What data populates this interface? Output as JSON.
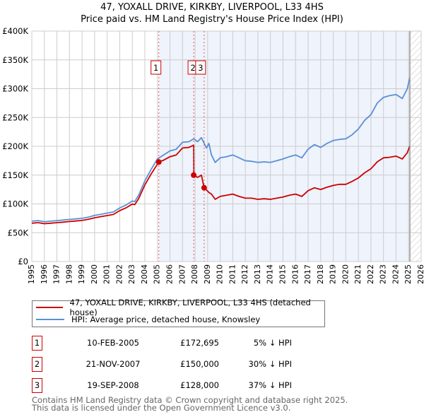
{
  "header": {
    "title": "47, YOXALL DRIVE, KIRKBY, LIVERPOOL, L33 4HS",
    "subtitle": "Price paid vs. HM Land Registry's House Price Index (HPI)"
  },
  "colors": {
    "property": "#cc0000",
    "hpi": "#5b8fd4",
    "shade": "#eef3fc",
    "grid": "#cccccc"
  },
  "chart_data": {
    "type": "line",
    "title": "47, YOXALL DRIVE, KIRKBY, LIVERPOOL, L33 4HS — Price paid vs. HM Land Registry's House Price Index (HPI)",
    "xlim": [
      1995,
      2026
    ],
    "ylim": [
      0,
      400000
    ],
    "grid": true,
    "x_ticks": [
      "1995",
      "1996",
      "1997",
      "1998",
      "1999",
      "2000",
      "2001",
      "2002",
      "2003",
      "2004",
      "2005",
      "2006",
      "2007",
      "2008",
      "2009",
      "2010",
      "2011",
      "2012",
      "2013",
      "2014",
      "2015",
      "2016",
      "2017",
      "2018",
      "2019",
      "2020",
      "2021",
      "2022",
      "2023",
      "2024",
      "2025",
      "2026"
    ],
    "y_ticks": [
      {
        "v": 0,
        "label": "£0"
      },
      {
        "v": 50000,
        "label": "£50K"
      },
      {
        "v": 100000,
        "label": "£100K"
      },
      {
        "v": 150000,
        "label": "£150K"
      },
      {
        "v": 200000,
        "label": "£200K"
      },
      {
        "v": 250000,
        "label": "£250K"
      },
      {
        "v": 300000,
        "label": "£300K"
      },
      {
        "v": 350000,
        "label": "£350K"
      },
      {
        "v": 400000,
        "label": "£400K"
      }
    ],
    "series": [
      {
        "name": "HPI: Average price, detached house, Knowsley",
        "x": [
          1995,
          1995.5,
          1996,
          1996.5,
          1997,
          1997.5,
          1998,
          1998.5,
          1999,
          1999.5,
          2000,
          2000.5,
          2001,
          2001.5,
          2002,
          2002.5,
          2003,
          2003.2,
          2003.5,
          2004,
          2004.5,
          2005,
          2005.5,
          2006,
          2006.5,
          2007,
          2007.5,
          2007.9,
          2008.2,
          2008.5,
          2008.9,
          2009.1,
          2009.3,
          2009.6,
          2010,
          2010.5,
          2011,
          2011.5,
          2012,
          2012.5,
          2013,
          2013.5,
          2014,
          2014.5,
          2015,
          2015.5,
          2016,
          2016.5,
          2017,
          2017.5,
          2018,
          2018.5,
          2019,
          2019.5,
          2020,
          2020.5,
          2021,
          2021.5,
          2022,
          2022.5,
          2023,
          2023.5,
          2024,
          2024.5,
          2024.9,
          2025.1
        ],
        "y": [
          70,
          71,
          69,
          70,
          71,
          72,
          73,
          74,
          75,
          77,
          80,
          82,
          84,
          86,
          93,
          98,
          105,
          104,
          115,
          140,
          160,
          178,
          185,
          192,
          195,
          207,
          208,
          213,
          208,
          215,
          197,
          205,
          185,
          172,
          180,
          182,
          185,
          180,
          175,
          174,
          172,
          173,
          172,
          175,
          178,
          182,
          185,
          180,
          195,
          203,
          198,
          205,
          210,
          212,
          213,
          220,
          230,
          245,
          255,
          275,
          285,
          288,
          290,
          283,
          300,
          320
        ]
      },
      {
        "name": "47, YOXALL DRIVE, KIRKBY, LIVERPOOL, L33 4HS (detached house)",
        "x": [
          1995,
          1995.5,
          1996,
          1996.5,
          1997,
          1997.5,
          1998,
          1998.5,
          1999,
          1999.5,
          2000,
          2000.5,
          2001,
          2001.5,
          2002,
          2002.5,
          2003,
          2003.2,
          2003.5,
          2004,
          2004.5,
          2005,
          2005.11,
          2005.5,
          2006,
          2006.5,
          2007,
          2007.5,
          2007.89,
          2007.9,
          2008.2,
          2008.5,
          2008.72,
          2008.9,
          2009.1,
          2009.3,
          2009.6,
          2010,
          2010.5,
          2011,
          2011.5,
          2012,
          2012.5,
          2013,
          2013.5,
          2014,
          2014.5,
          2015,
          2015.5,
          2016,
          2016.5,
          2017,
          2017.5,
          2018,
          2018.5,
          2019,
          2019.5,
          2020,
          2020.5,
          2021,
          2021.5,
          2022,
          2022.5,
          2023,
          2023.5,
          2024,
          2024.5,
          2024.9,
          2025.1
        ],
        "y": [
          66.5,
          67.5,
          65.6,
          66.5,
          67.5,
          68.4,
          69.4,
          70.3,
          71.3,
          73.2,
          76,
          77.9,
          79.8,
          81.7,
          88.4,
          93.1,
          99.8,
          98.8,
          109,
          133,
          152,
          169,
          172.7,
          176,
          182,
          185,
          197,
          198,
          202,
          150,
          146,
          150,
          128,
          124,
          120,
          117,
          108,
          113,
          115,
          117,
          113,
          110,
          110,
          108,
          109,
          108,
          110,
          112,
          115,
          117,
          113,
          123,
          128,
          125,
          129,
          132,
          134,
          134,
          139,
          145,
          154,
          161,
          173,
          180,
          181,
          183,
          178,
          189,
          201
        ]
      }
    ],
    "y_units": "thousands GBP",
    "sales": [
      {
        "label": "1",
        "x": 2005.11,
        "y": 172.695
      },
      {
        "label": "2",
        "x": 2007.89,
        "y": 150
      },
      {
        "label": "3",
        "x": 2008.72,
        "y": 128
      }
    ],
    "shaded_from": 2005.11,
    "forecast_hatch_from": 2025.1
  },
  "legend": {
    "property": "47, YOXALL DRIVE, KIRKBY, LIVERPOOL, L33 4HS (detached house)",
    "hpi": "HPI: Average price, detached house, Knowsley"
  },
  "transactions": [
    {
      "num": "1",
      "date": "10-FEB-2005",
      "price": "£172,695",
      "hpi": "5% ↓ HPI"
    },
    {
      "num": "2",
      "date": "21-NOV-2007",
      "price": "£150,000",
      "hpi": "30% ↓ HPI"
    },
    {
      "num": "3",
      "date": "19-SEP-2008",
      "price": "£128,000",
      "hpi": "37% ↓ HPI"
    }
  ],
  "footer": {
    "line1": "Contains HM Land Registry data © Crown copyright and database right 2025.",
    "line2": "This data is licensed under the Open Government Licence v3.0."
  }
}
